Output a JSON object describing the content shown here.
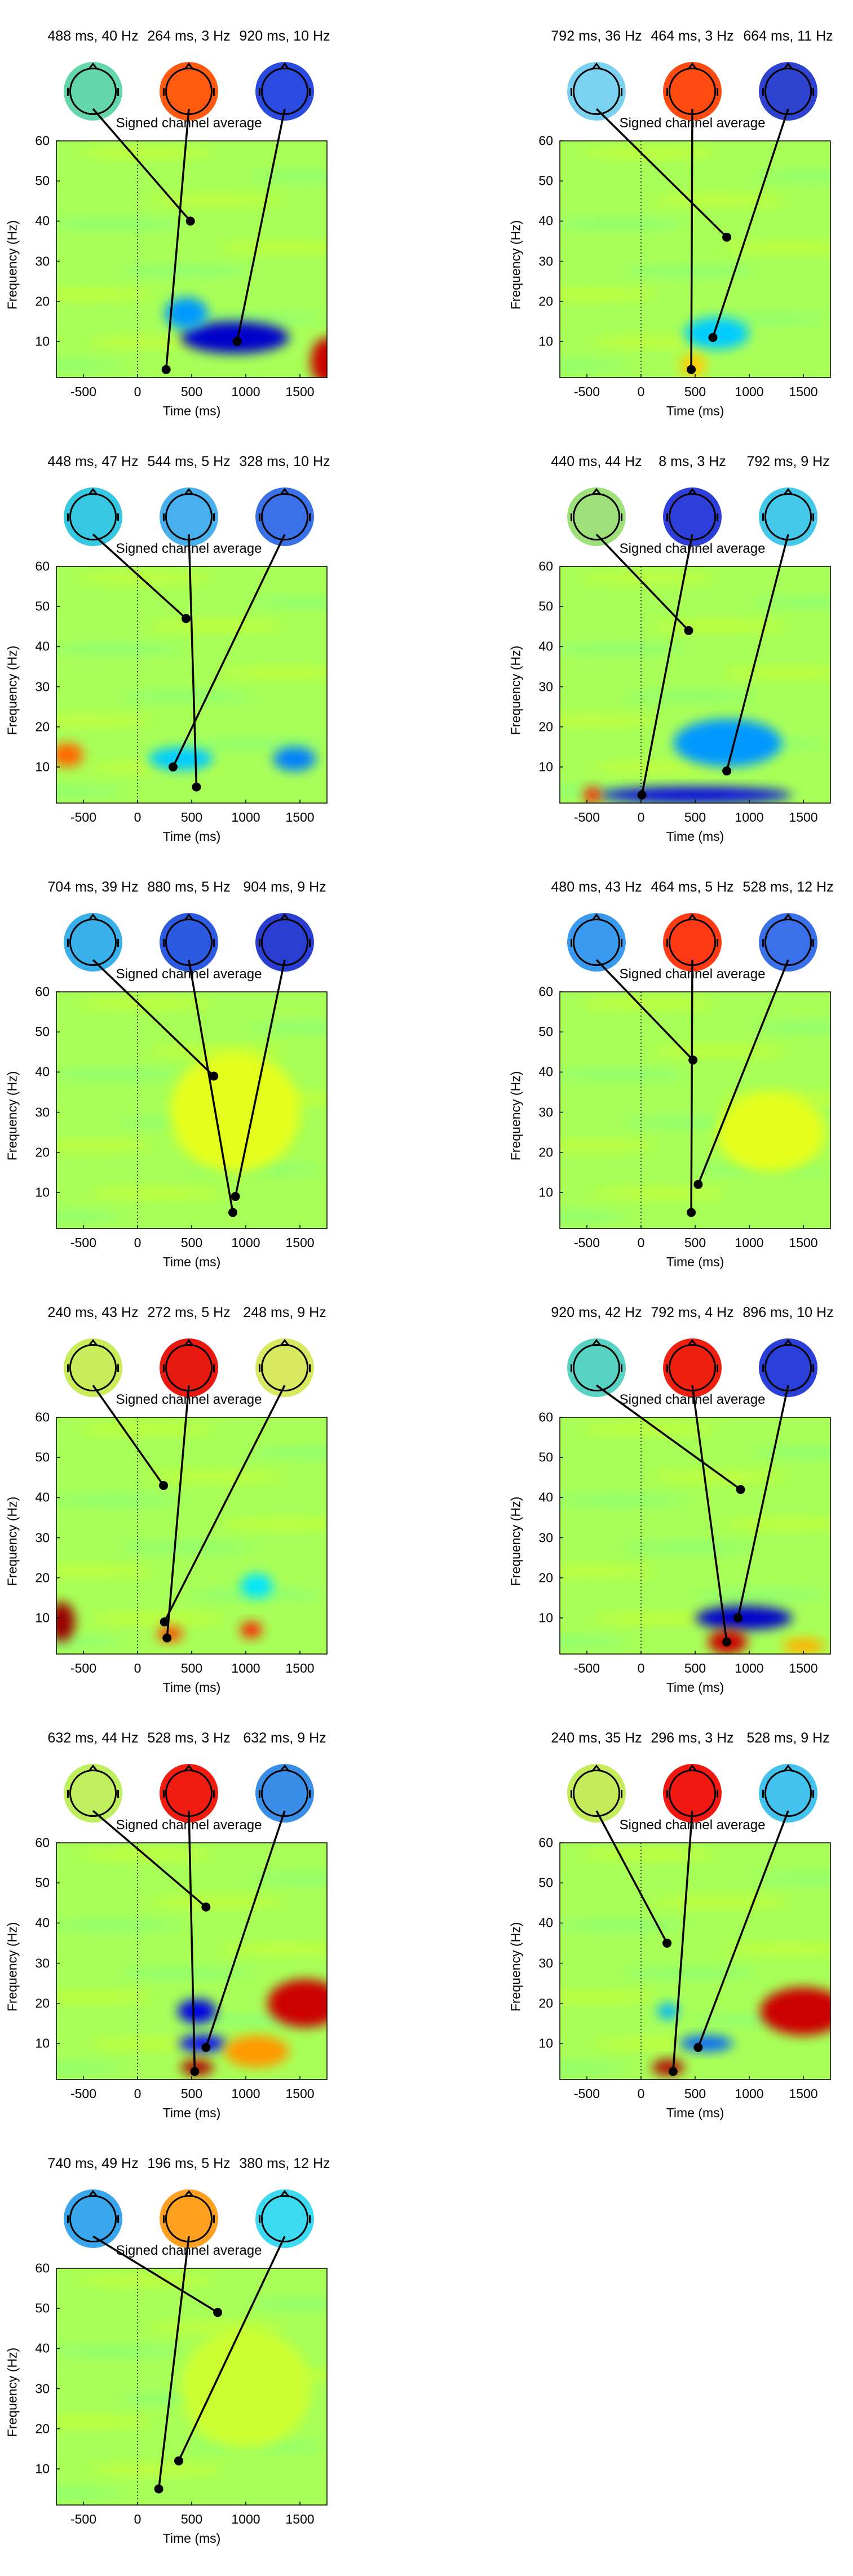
{
  "chart_data": [
    {
      "type": "heatmap",
      "xlabel": "Time (ms)",
      "ylabel": "Frequency (Hz)",
      "xlim": [
        -750,
        1750
      ],
      "ylim": [
        1,
        60
      ],
      "xticks": [
        -500,
        0,
        500,
        1000,
        1500
      ],
      "yticks": [
        10,
        20,
        30,
        40,
        50,
        60
      ],
      "overlay_label": "Signed channel average",
      "topoplots": [
        {
          "label": "488 ms, 40 Hz",
          "time_ms": 488,
          "freq_hz": 40,
          "fill": "#64d6ac"
        },
        {
          "label": "264 ms, 3 Hz",
          "time_ms": 264,
          "freq_hz": 3,
          "fill": "#ff5a10"
        },
        {
          "label": "920 ms, 10 Hz",
          "time_ms": 920,
          "freq_hz": 10,
          "fill": "#2a4ae0"
        }
      ],
      "blobs": [
        {
          "time_ms": 900,
          "freq_hz": 11,
          "value": -0.85,
          "span_ms": 500,
          "span_hz": 4
        },
        {
          "time_ms": 450,
          "freq_hz": 17,
          "value": -0.45,
          "span_ms": 200,
          "span_hz": 4
        },
        {
          "time_ms": 1750,
          "freq_hz": 5,
          "value": 0.85,
          "span_ms": 150,
          "span_hz": 6
        }
      ]
    },
    {
      "type": "heatmap",
      "xlabel": "Time (ms)",
      "ylabel": "Frequency (Hz)",
      "xlim": [
        -750,
        1750
      ],
      "ylim": [
        1,
        60
      ],
      "xticks": [
        -500,
        0,
        500,
        1000,
        1500
      ],
      "yticks": [
        10,
        20,
        30,
        40,
        50,
        60
      ],
      "overlay_label": "Signed channel average",
      "topoplots": [
        {
          "label": "792 ms, 36 Hz",
          "time_ms": 792,
          "freq_hz": 36,
          "fill": "#7ad2f0"
        },
        {
          "label": "464 ms, 3 Hz",
          "time_ms": 464,
          "freq_hz": 3,
          "fill": "#ff4a10"
        },
        {
          "label": "664 ms, 11 Hz",
          "time_ms": 664,
          "freq_hz": 11,
          "fill": "#2e44d0"
        }
      ],
      "blobs": [
        {
          "time_ms": 700,
          "freq_hz": 12,
          "value": -0.35,
          "span_ms": 300,
          "span_hz": 4
        },
        {
          "time_ms": 480,
          "freq_hz": 4,
          "value": 0.35,
          "span_ms": 120,
          "span_hz": 3
        }
      ]
    },
    {
      "type": "heatmap",
      "xlabel": "Time (ms)",
      "ylabel": "Frequency (Hz)",
      "xlim": [
        -750,
        1750
      ],
      "ylim": [
        1,
        60
      ],
      "xticks": [
        -500,
        0,
        500,
        1000,
        1500
      ],
      "yticks": [
        10,
        20,
        30,
        40,
        50,
        60
      ],
      "overlay_label": "Signed channel average",
      "topoplots": [
        {
          "label": "448 ms, 47 Hz",
          "time_ms": 448,
          "freq_hz": 47,
          "fill": "#36c8e0"
        },
        {
          "label": "544 ms, 5 Hz",
          "time_ms": 544,
          "freq_hz": 5,
          "fill": "#48b0ee"
        },
        {
          "label": "328 ms, 10 Hz",
          "time_ms": 328,
          "freq_hz": 10,
          "fill": "#3a70e8"
        }
      ],
      "blobs": [
        {
          "time_ms": 1450,
          "freq_hz": 12,
          "value": -0.5,
          "span_ms": 200,
          "span_hz": 3
        },
        {
          "time_ms": 400,
          "freq_hz": 12,
          "value": -0.35,
          "span_ms": 300,
          "span_hz": 3
        },
        {
          "time_ms": -650,
          "freq_hz": 13,
          "value": 0.55,
          "span_ms": 150,
          "span_hz": 3
        }
      ]
    },
    {
      "type": "heatmap",
      "xlabel": "Time (ms)",
      "ylabel": "Frequency (Hz)",
      "xlim": [
        -750,
        1750
      ],
      "ylim": [
        1,
        60
      ],
      "xticks": [
        -500,
        0,
        500,
        1000,
        1500
      ],
      "yticks": [
        10,
        20,
        30,
        40,
        50,
        60
      ],
      "overlay_label": "Signed channel average",
      "topoplots": [
        {
          "label": "440 ms, 44 Hz",
          "time_ms": 440,
          "freq_hz": 44,
          "fill": "#9ee07a"
        },
        {
          "label": "8 ms, 3 Hz",
          "time_ms": 8,
          "freq_hz": 3,
          "fill": "#2e3ed8"
        },
        {
          "label": "792 ms, 9 Hz",
          "time_ms": 792,
          "freq_hz": 9,
          "fill": "#44c8ea"
        }
      ],
      "blobs": [
        {
          "time_ms": 500,
          "freq_hz": 3,
          "value": -0.8,
          "span_ms": 900,
          "span_hz": 2
        },
        {
          "time_ms": 800,
          "freq_hz": 16,
          "value": -0.45,
          "span_ms": 500,
          "span_hz": 6
        },
        {
          "time_ms": -450,
          "freq_hz": 3,
          "value": 0.7,
          "span_ms": 80,
          "span_hz": 2
        }
      ]
    },
    {
      "type": "heatmap",
      "xlabel": "Time (ms)",
      "ylabel": "Frequency (Hz)",
      "xlim": [
        -750,
        1750
      ],
      "ylim": [
        1,
        60
      ],
      "xticks": [
        -500,
        0,
        500,
        1000,
        1500
      ],
      "yticks": [
        10,
        20,
        30,
        40,
        50,
        60
      ],
      "overlay_label": "Signed channel average",
      "topoplots": [
        {
          "label": "704 ms, 39 Hz",
          "time_ms": 704,
          "freq_hz": 39,
          "fill": "#3ab0ea"
        },
        {
          "label": "880 ms, 5 Hz",
          "time_ms": 880,
          "freq_hz": 5,
          "fill": "#2c5ae0"
        },
        {
          "label": "904 ms, 9 Hz",
          "time_ms": 904,
          "freq_hz": 9,
          "fill": "#2a3ed2"
        }
      ],
      "blobs": [
        {
          "time_ms": 900,
          "freq_hz": 30,
          "value": 0.2,
          "span_ms": 600,
          "span_hz": 15
        }
      ]
    },
    {
      "type": "heatmap",
      "xlabel": "Time (ms)",
      "ylabel": "Frequency (Hz)",
      "xlim": [
        -750,
        1750
      ],
      "ylim": [
        1,
        60
      ],
      "xticks": [
        -500,
        0,
        500,
        1000,
        1500
      ],
      "yticks": [
        10,
        20,
        30,
        40,
        50,
        60
      ],
      "overlay_label": "Signed channel average",
      "topoplots": [
        {
          "label": "480 ms, 43 Hz",
          "time_ms": 480,
          "freq_hz": 43,
          "fill": "#3a9af0"
        },
        {
          "label": "464 ms, 5 Hz",
          "time_ms": 464,
          "freq_hz": 5,
          "fill": "#ff3a14"
        },
        {
          "label": "528 ms, 12 Hz",
          "time_ms": 528,
          "freq_hz": 12,
          "fill": "#3a70ea"
        }
      ],
      "blobs": [
        {
          "time_ms": 1200,
          "freq_hz": 25,
          "value": 0.2,
          "span_ms": 500,
          "span_hz": 10
        }
      ]
    },
    {
      "type": "heatmap",
      "xlabel": "Time (ms)",
      "ylabel": "Frequency (Hz)",
      "xlim": [
        -750,
        1750
      ],
      "ylim": [
        1,
        60
      ],
      "xticks": [
        -500,
        0,
        500,
        1000,
        1500
      ],
      "yticks": [
        10,
        20,
        30,
        40,
        50,
        60
      ],
      "overlay_label": "Signed channel average",
      "topoplots": [
        {
          "label": "240 ms, 43 Hz",
          "time_ms": 240,
          "freq_hz": 43,
          "fill": "#c8ec5a"
        },
        {
          "label": "272 ms, 5 Hz",
          "time_ms": 272,
          "freq_hz": 5,
          "fill": "#e81a10"
        },
        {
          "label": "248 ms, 9 Hz",
          "time_ms": 248,
          "freq_hz": 9,
          "fill": "#d8e860"
        }
      ],
      "blobs": [
        {
          "time_ms": -700,
          "freq_hz": 9,
          "value": 0.95,
          "span_ms": 120,
          "span_hz": 5
        },
        {
          "time_ms": 1050,
          "freq_hz": 7,
          "value": 0.7,
          "span_ms": 100,
          "span_hz": 2
        },
        {
          "time_ms": 300,
          "freq_hz": 6,
          "value": 0.6,
          "span_ms": 120,
          "span_hz": 2
        },
        {
          "time_ms": 1100,
          "freq_hz": 18,
          "value": -0.3,
          "span_ms": 150,
          "span_hz": 3
        }
      ]
    },
    {
      "type": "heatmap",
      "xlabel": "Time (ms)",
      "ylabel": "Frequency (Hz)",
      "xlim": [
        -750,
        1750
      ],
      "ylim": [
        1,
        60
      ],
      "xticks": [
        -500,
        0,
        500,
        1000,
        1500
      ],
      "yticks": [
        10,
        20,
        30,
        40,
        50,
        60
      ],
      "overlay_label": "Signed channel average",
      "topoplots": [
        {
          "label": "920 ms, 42 Hz",
          "time_ms": 920,
          "freq_hz": 42,
          "fill": "#58d2c2"
        },
        {
          "label": "792 ms, 4 Hz",
          "time_ms": 792,
          "freq_hz": 4,
          "fill": "#f02010"
        },
        {
          "label": "896 ms, 10 Hz",
          "time_ms": 896,
          "freq_hz": 10,
          "fill": "#2a40d8"
        }
      ],
      "blobs": [
        {
          "time_ms": 950,
          "freq_hz": 10,
          "value": -0.85,
          "span_ms": 450,
          "span_hz": 3
        },
        {
          "time_ms": 800,
          "freq_hz": 4,
          "value": 0.85,
          "span_ms": 180,
          "span_hz": 3
        },
        {
          "time_ms": 1500,
          "freq_hz": 3,
          "value": 0.4,
          "span_ms": 200,
          "span_hz": 2
        }
      ]
    },
    {
      "type": "heatmap",
      "xlabel": "Time (ms)",
      "ylabel": "Frequency (Hz)",
      "xlim": [
        -750,
        1750
      ],
      "ylim": [
        1,
        60
      ],
      "xticks": [
        -500,
        0,
        500,
        1000,
        1500
      ],
      "yticks": [
        10,
        20,
        30,
        40,
        50,
        60
      ],
      "overlay_label": "Signed channel average",
      "topoplots": [
        {
          "label": "632 ms, 44 Hz",
          "time_ms": 632,
          "freq_hz": 44,
          "fill": "#bfee5e"
        },
        {
          "label": "528 ms, 3 Hz",
          "time_ms": 528,
          "freq_hz": 3,
          "fill": "#f01c10"
        },
        {
          "label": "632 ms, 9 Hz",
          "time_ms": 632,
          "freq_hz": 9,
          "fill": "#3a8ee8"
        }
      ],
      "blobs": [
        {
          "time_ms": 1550,
          "freq_hz": 20,
          "value": 0.85,
          "span_ms": 350,
          "span_hz": 6
        },
        {
          "time_ms": 550,
          "freq_hz": 18,
          "value": -0.8,
          "span_ms": 180,
          "span_hz": 3
        },
        {
          "time_ms": 600,
          "freq_hz": 10,
          "value": -0.75,
          "span_ms": 220,
          "span_hz": 2
        },
        {
          "time_ms": 550,
          "freq_hz": 4,
          "value": 0.9,
          "span_ms": 150,
          "span_hz": 2
        },
        {
          "time_ms": 1100,
          "freq_hz": 8,
          "value": 0.45,
          "span_ms": 300,
          "span_hz": 4
        }
      ]
    },
    {
      "type": "heatmap",
      "xlabel": "Time (ms)",
      "ylabel": "Frequency (Hz)",
      "xlim": [
        -750,
        1750
      ],
      "ylim": [
        1,
        60
      ],
      "xticks": [
        -500,
        0,
        500,
        1000,
        1500
      ],
      "yticks": [
        10,
        20,
        30,
        40,
        50,
        60
      ],
      "overlay_label": "Signed channel average",
      "topoplots": [
        {
          "label": "240 ms, 35 Hz",
          "time_ms": 240,
          "freq_hz": 35,
          "fill": "#c4ec5a"
        },
        {
          "label": "296 ms, 3 Hz",
          "time_ms": 296,
          "freq_hz": 3,
          "fill": "#f01810"
        },
        {
          "label": "528 ms, 9 Hz",
          "time_ms": 528,
          "freq_hz": 9,
          "fill": "#44c2ee"
        }
      ],
      "blobs": [
        {
          "time_ms": 1500,
          "freq_hz": 18,
          "value": 0.85,
          "span_ms": 400,
          "span_hz": 6
        },
        {
          "time_ms": 250,
          "freq_hz": 4,
          "value": 0.9,
          "span_ms": 150,
          "span_hz": 2
        },
        {
          "time_ms": 600,
          "freq_hz": 10,
          "value": -0.55,
          "span_ms": 250,
          "span_hz": 2
        },
        {
          "time_ms": 250,
          "freq_hz": 18,
          "value": -0.4,
          "span_ms": 100,
          "span_hz": 2
        }
      ]
    },
    {
      "type": "heatmap",
      "xlabel": "Time (ms)",
      "ylabel": "Frequency (Hz)",
      "xlim": [
        -750,
        1750
      ],
      "ylim": [
        1,
        60
      ],
      "xticks": [
        -500,
        0,
        500,
        1000,
        1500
      ],
      "yticks": [
        10,
        20,
        30,
        40,
        50,
        60
      ],
      "overlay_label": "Signed channel average",
      "topoplots": [
        {
          "label": "740 ms, 49 Hz",
          "time_ms": 740,
          "freq_hz": 49,
          "fill": "#3aa6ee"
        },
        {
          "label": "196 ms, 5 Hz",
          "time_ms": 196,
          "freq_hz": 5,
          "fill": "#ffa020"
        },
        {
          "label": "380 ms, 12 Hz",
          "time_ms": 380,
          "freq_hz": 12,
          "fill": "#3cdaf0"
        }
      ],
      "blobs": [
        {
          "time_ms": 1000,
          "freq_hz": 30,
          "value": 0.15,
          "span_ms": 600,
          "span_hz": 15
        }
      ]
    }
  ]
}
